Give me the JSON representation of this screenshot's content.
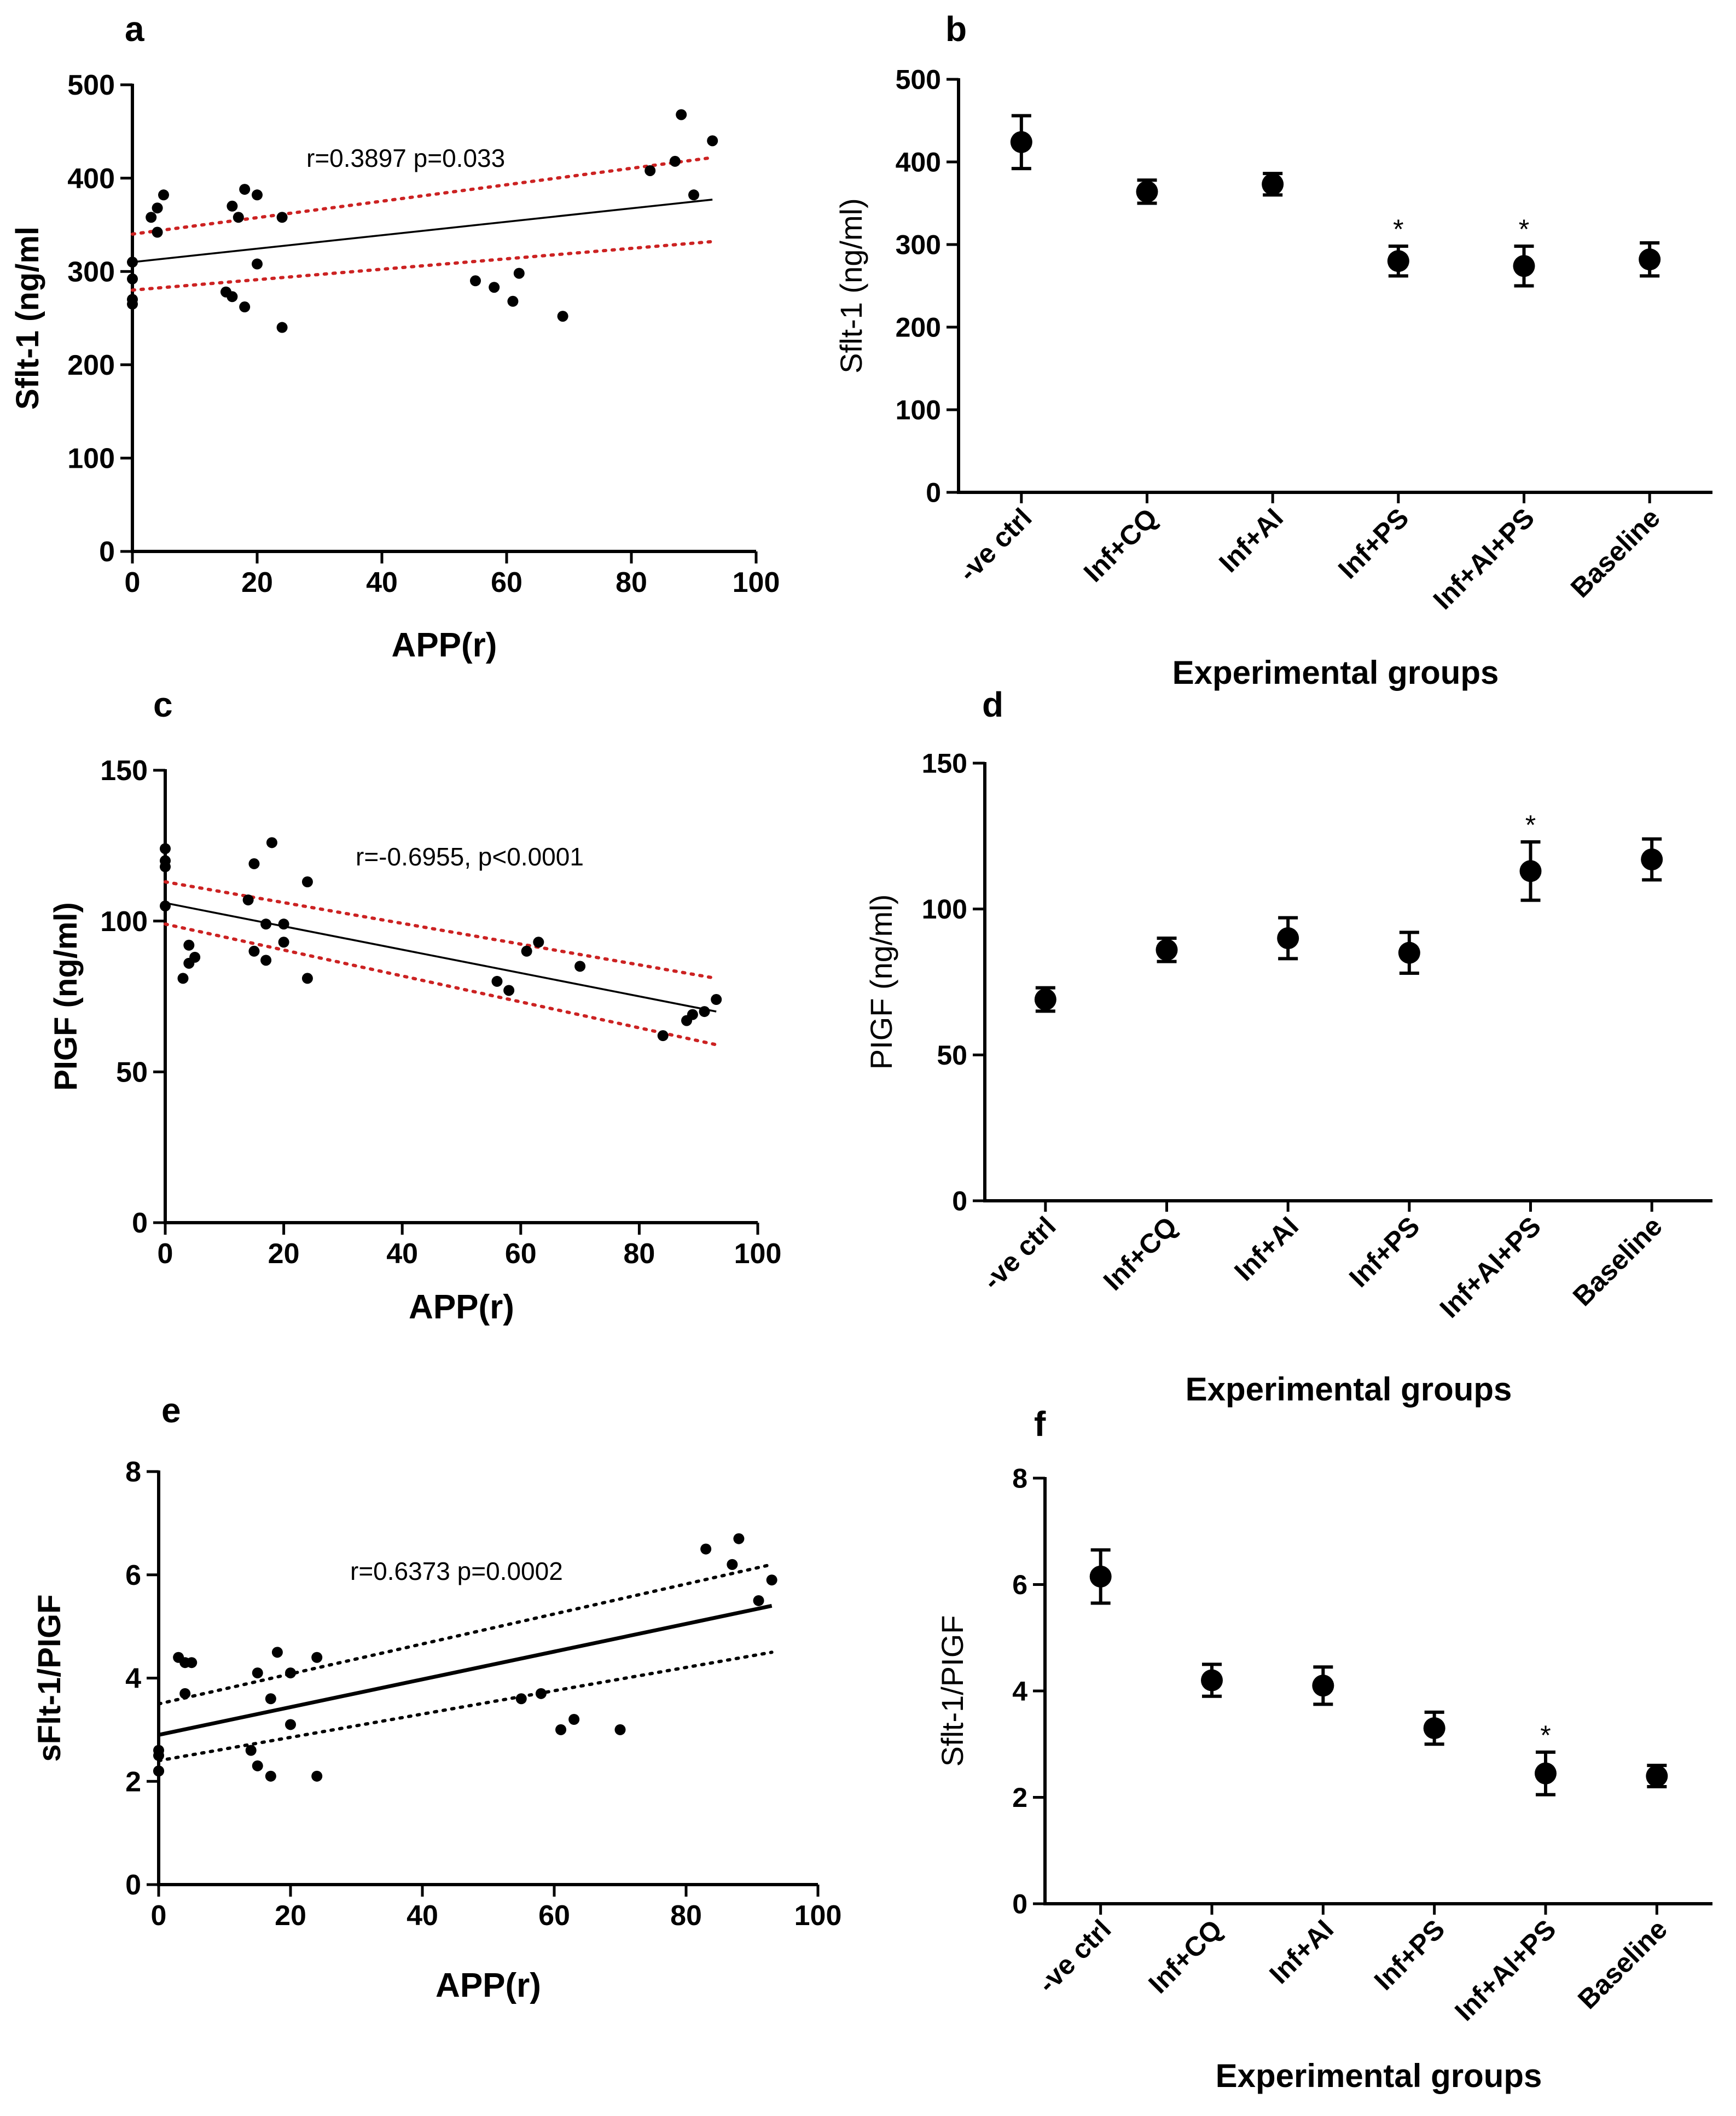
{
  "figure": {
    "colors": {
      "ink": "#000000",
      "confidence_band_red": "#cc2222",
      "confidence_band_black": "#000000",
      "background": "#ffffff"
    }
  },
  "chart_data": [
    {
      "panel": "a",
      "type": "scatter",
      "title": "",
      "xlabel": "APP(r)",
      "ylabel": "Sflt-1 (ng/ml",
      "xlim": [
        0,
        100
      ],
      "ylim": [
        0,
        500
      ],
      "xticks": [
        0,
        20,
        40,
        60,
        80,
        100
      ],
      "yticks": [
        0,
        100,
        200,
        300,
        400,
        500
      ],
      "annotation": "r=0.3897 p=0.033",
      "band_color": "red",
      "x": [
        0,
        0,
        0,
        0,
        3,
        4,
        4,
        5,
        15,
        16,
        16,
        17,
        18,
        18,
        20,
        20,
        24,
        24,
        55,
        58,
        61,
        62,
        69,
        83,
        87,
        88,
        90,
        93
      ],
      "y": [
        265,
        270,
        292,
        310,
        358,
        368,
        342,
        382,
        278,
        273,
        370,
        358,
        262,
        388,
        308,
        382,
        240,
        358,
        290,
        283,
        268,
        298,
        252,
        408,
        418,
        468,
        382,
        440
      ],
      "fit": {
        "x": [
          0,
          93
        ],
        "y": [
          310,
          377
        ]
      },
      "ci_upper": {
        "x": [
          0,
          93
        ],
        "y": [
          340,
          422
        ]
      },
      "ci_lower": {
        "x": [
          0,
          93
        ],
        "y": [
          280,
          332
        ]
      }
    },
    {
      "panel": "b",
      "type": "errorbar",
      "xlabel": "Experimental groups",
      "ylabel": "Sflt-1 (ng/ml)",
      "ylim": [
        0,
        500
      ],
      "yticks": [
        0,
        100,
        200,
        300,
        400,
        500
      ],
      "categories": [
        "-ve ctrl",
        "Inf+CQ",
        "Inf+AI",
        "Inf+PS",
        "Inf+AI+PS",
        "Baseline"
      ],
      "values": [
        424,
        364,
        373,
        280,
        274,
        282
      ],
      "errors": [
        32,
        14,
        13,
        18,
        24,
        20
      ],
      "markers": [
        "",
        "",
        "",
        "*",
        "*",
        ""
      ]
    },
    {
      "panel": "c",
      "type": "scatter",
      "xlabel": "APP(r)",
      "ylabel": "PIGF (ng/ml)",
      "xlim": [
        0,
        100
      ],
      "ylim": [
        0,
        150
      ],
      "xticks": [
        0,
        20,
        40,
        60,
        80,
        100
      ],
      "yticks": [
        0,
        50,
        100,
        150
      ],
      "annotation": "r=-0.6955, p<0.0001",
      "band_color": "red",
      "x": [
        0,
        0,
        0,
        0,
        3,
        4,
        4,
        5,
        14,
        15,
        15,
        17,
        17,
        18,
        20,
        20,
        24,
        24,
        56,
        58,
        61,
        63,
        70,
        84,
        88,
        89,
        91,
        93
      ],
      "y": [
        105,
        118,
        120,
        124,
        81,
        86,
        92,
        88,
        107,
        90,
        119,
        99,
        87,
        126,
        99,
        93,
        113,
        81,
        80,
        77,
        90,
        93,
        85,
        62,
        67,
        69,
        70,
        74
      ],
      "fit": {
        "x": [
          0,
          93
        ],
        "y": [
          106,
          70
        ]
      },
      "ci_upper": {
        "x": [
          0,
          93
        ],
        "y": [
          113,
          81
        ]
      },
      "ci_lower": {
        "x": [
          0,
          93
        ],
        "y": [
          99,
          59
        ]
      }
    },
    {
      "panel": "d",
      "type": "errorbar",
      "xlabel": "Experimental groups",
      "ylabel": "PIGF (ng/ml)",
      "ylim": [
        0,
        150
      ],
      "yticks": [
        0,
        50,
        100,
        150
      ],
      "categories": [
        "-ve ctrl",
        "Inf+CQ",
        "Inf+AI",
        "Inf+PS",
        "Inf+AI+PS",
        "Baseline"
      ],
      "values": [
        69,
        86,
        90,
        85,
        113,
        117
      ],
      "errors": [
        4,
        4,
        7,
        7,
        10,
        7
      ],
      "markers": [
        "",
        "",
        "",
        "",
        "*",
        ""
      ]
    },
    {
      "panel": "e",
      "type": "scatter",
      "xlabel": "APP(r)",
      "ylabel": "sFlt-1/PIGF",
      "xlim": [
        0,
        100
      ],
      "ylim": [
        0,
        8
      ],
      "xticks": [
        0,
        20,
        40,
        60,
        80,
        100
      ],
      "yticks": [
        0,
        2,
        4,
        6,
        8
      ],
      "annotation": "r=0.6373 p=0.0002",
      "band_color": "black",
      "x": [
        0,
        0,
        0,
        0,
        3,
        4,
        4,
        5,
        14,
        15,
        15,
        17,
        17,
        18,
        20,
        20,
        24,
        24,
        55,
        58,
        61,
        63,
        70,
        83,
        87,
        88,
        91,
        93
      ],
      "y": [
        2.2,
        2.5,
        2.6,
        2.2,
        4.4,
        3.7,
        4.3,
        4.3,
        2.6,
        2.3,
        4.1,
        3.6,
        2.1,
        4.5,
        3.1,
        4.1,
        2.1,
        4.4,
        3.6,
        3.7,
        3.0,
        3.2,
        3.0,
        6.5,
        6.2,
        6.7,
        5.5,
        5.9
      ],
      "fit": {
        "x": [
          0,
          93
        ],
        "y": [
          2.9,
          5.4
        ]
      },
      "ci_upper": {
        "x": [
          0,
          93
        ],
        "y": [
          3.5,
          6.2
        ]
      },
      "ci_lower": {
        "x": [
          0,
          93
        ],
        "y": [
          2.4,
          4.5
        ]
      }
    },
    {
      "panel": "f",
      "type": "errorbar",
      "xlabel": "Experimental groups",
      "ylabel": "Sflt-1/PIGF",
      "ylim": [
        0,
        8
      ],
      "yticks": [
        0,
        2,
        4,
        6,
        8
      ],
      "categories": [
        "-ve ctrl",
        "Inf+CQ",
        "Inf+AI",
        "Inf+PS",
        "Inf+AI+PS",
        "Baseline"
      ],
      "values": [
        6.15,
        4.2,
        4.1,
        3.3,
        2.45,
        2.4
      ],
      "errors": [
        0.5,
        0.3,
        0.35,
        0.3,
        0.4,
        0.2
      ],
      "markers": [
        "",
        "",
        "",
        "",
        "*",
        ""
      ]
    }
  ]
}
